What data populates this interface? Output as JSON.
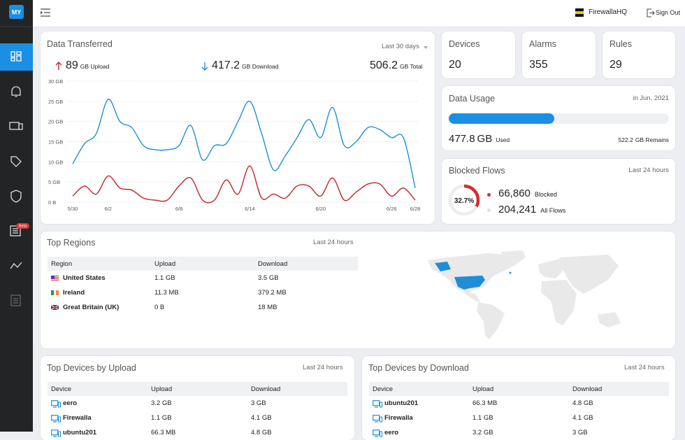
{
  "header": {
    "logo": "MY",
    "org": "FirewallaHQ",
    "sign_out": "Sign Out"
  },
  "sidebar": {
    "badge": "Beta"
  },
  "data_transferred": {
    "title": "Data Transferred",
    "range": "Last 30 days",
    "upload": 89,
    "upload_label": "GB Upload",
    "download": 417.2,
    "download_label": "GB Download",
    "total": 506.2,
    "total_label": "GB Total"
  },
  "chart_data": {
    "type": "line",
    "categories": [
      "5/30",
      null,
      null,
      "6/2",
      null,
      null,
      null,
      null,
      null,
      "6/8",
      null,
      null,
      null,
      null,
      null,
      "6/14",
      null,
      null,
      null,
      null,
      null,
      "6/20",
      null,
      null,
      null,
      null,
      null,
      "6/26",
      null,
      "6/28"
    ],
    "series": [
      {
        "color": "#1f8ed8",
        "values": [
          9.5,
          14.5,
          17,
          25.5,
          20,
          18.5,
          14,
          13,
          13,
          14,
          19,
          10.5,
          14,
          14.5,
          20,
          25,
          17,
          8,
          11.5,
          16,
          20.5,
          16,
          23.5,
          14,
          15,
          18.5,
          18,
          16,
          16,
          3.5
        ]
      },
      {
        "color": "#c0262b",
        "values": [
          1.5,
          4,
          2,
          6.5,
          3.5,
          3,
          1,
          0.5,
          0.5,
          4,
          6,
          0.5,
          0.5,
          5.5,
          2,
          9,
          1,
          2,
          1,
          4,
          4,
          1.5,
          6,
          0.5,
          2.5,
          4.5,
          4.5,
          1.5,
          3.5,
          0.5
        ]
      }
    ],
    "ylim": [
      0,
      30
    ],
    "yticks": [
      {
        "value": 0,
        "label": "0 B"
      },
      {
        "value": 5,
        "label": "5 GB"
      },
      {
        "value": 10,
        "label": "10 GB"
      },
      {
        "value": 15,
        "label": "15 GB"
      },
      {
        "value": 20,
        "label": "20 GB"
      },
      {
        "value": 25,
        "label": "25 GB"
      },
      {
        "value": 30,
        "label": "30 GB"
      }
    ],
    "grid": true
  },
  "stats": [
    {
      "title": "Devices",
      "value": 20
    },
    {
      "title": "Alarms",
      "value": 355
    },
    {
      "title": "Rules",
      "value": 29
    }
  ],
  "data_usage": {
    "title": "Data Usage",
    "period": "in Jun, 2021",
    "used": 477.8,
    "used_unit": "GB",
    "used_label": "Used",
    "remains": 522.2,
    "remains_label": "GB Remains"
  },
  "blocked_flows": {
    "title": "Blocked Flows",
    "period": "Last 24 hours",
    "percent": {
      "value": 32.7,
      "label": "32.7%"
    },
    "blocked": "66,860",
    "blocked_label": "Blocked",
    "all": "204,241",
    "all_label": "All Flows"
  },
  "top_regions": {
    "title": "Top Regions",
    "period": "Last 24 hours",
    "columns": [
      "Region",
      "Upload",
      "Download"
    ],
    "rows": [
      [
        "United States",
        "1.1 GB",
        "3.5 GB"
      ],
      [
        "Ireland",
        "11.3 MB",
        "379.2 MB"
      ],
      [
        "Great Britain (UK)",
        "0 B",
        "18 MB"
      ]
    ]
  },
  "top_upload": {
    "title": "Top Devices by Upload",
    "period": "Last 24 hours",
    "columns": [
      "Device",
      "Upload",
      "Download"
    ],
    "rows": [
      [
        "eero",
        "3.2 GB",
        "3 GB"
      ],
      [
        "Firewalla",
        "1.1 GB",
        "4.1 GB"
      ],
      [
        "ubuntu201",
        "66.3 MB",
        "4.8 GB"
      ]
    ]
  },
  "top_download": {
    "title": "Top Devices by Download",
    "period": "Last 24 hours",
    "columns": [
      "Device",
      "Upload",
      "Download"
    ],
    "rows": [
      [
        "ubuntu201",
        "66.3 MB",
        "4.8 GB"
      ],
      [
        "Firewalla",
        "1.1 GB",
        "4.1 GB"
      ],
      [
        "eero",
        "3.2 GB",
        "3 GB"
      ]
    ]
  }
}
